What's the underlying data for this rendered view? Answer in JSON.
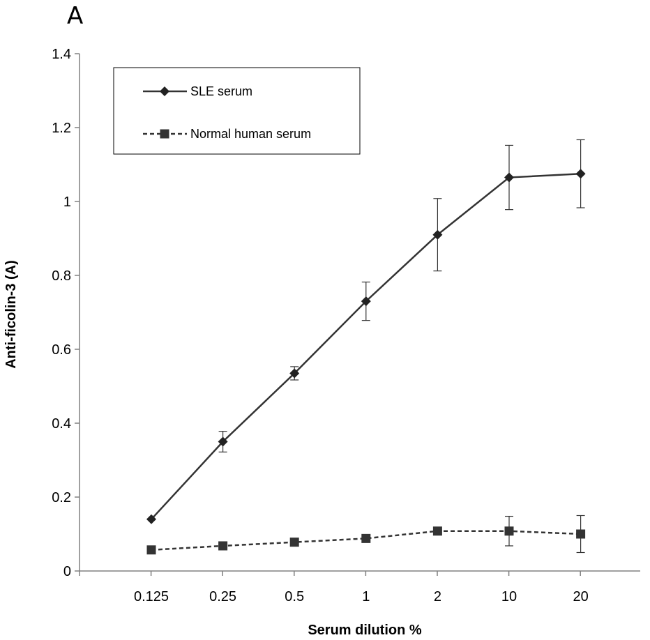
{
  "panel_label": "A",
  "chart_data": {
    "type": "line",
    "title": "",
    "xlabel": "Serum dilution %",
    "ylabel": "Anti-ficolin-3 (A)",
    "categories": [
      "0.125",
      "0.25",
      "0.5",
      "1",
      "2",
      "10",
      "20"
    ],
    "ylim": [
      0,
      1.4
    ],
    "yticks": [
      0,
      0.2,
      0.4,
      0.6,
      0.8,
      1,
      1.2,
      1.4
    ],
    "ytick_labels": [
      "0",
      "0.2",
      "0.4",
      "0.6",
      "0.8",
      "1",
      "1.2",
      "1.4"
    ],
    "grid": false,
    "legend": "top-left",
    "series": [
      {
        "name": "SLE serum",
        "values": [
          0.14,
          0.35,
          0.535,
          0.73,
          0.91,
          1.065,
          1.075
        ],
        "errors": [
          null,
          0.028,
          0.018,
          0.052,
          0.098,
          0.087,
          0.092
        ],
        "marker": "diamond",
        "line": "solid",
        "color": "#333333"
      },
      {
        "name": "Normal human serum",
        "values": [
          0.057,
          0.068,
          0.078,
          0.088,
          0.108,
          0.108,
          0.1
        ],
        "errors": [
          null,
          null,
          null,
          null,
          null,
          0.04,
          0.05
        ],
        "marker": "square",
        "line": "dashed",
        "color": "#333333"
      }
    ]
  }
}
